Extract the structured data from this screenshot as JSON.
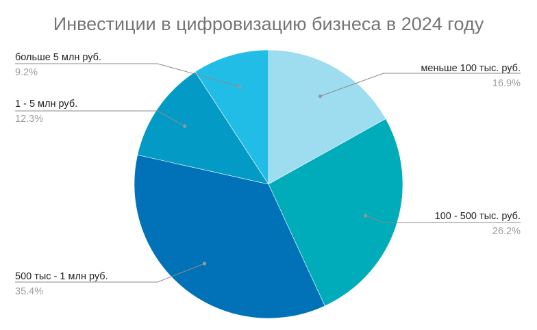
{
  "chart_data": {
    "type": "pie",
    "title": "Инвестиции в цифровизацию бизнеса в 2024 году",
    "categories": [
      "меньше 100 тыс. руб.",
      "100 - 500 тыс. руб.",
      "500 тыс - 1 млн руб.",
      "1 - 5 млн руб.",
      "больше 5 млн руб."
    ],
    "values": [
      16.9,
      26.2,
      35.4,
      12.3,
      9.2
    ],
    "value_labels": [
      "16.9%",
      "26.2%",
      "35.4%",
      "12.3%",
      "9.2%"
    ],
    "colors": [
      "#9edcf0",
      "#00acb9",
      "#0272b8",
      "#039bc5",
      "#22bde6"
    ],
    "legend": "labels-outside-with-leader-lines"
  }
}
